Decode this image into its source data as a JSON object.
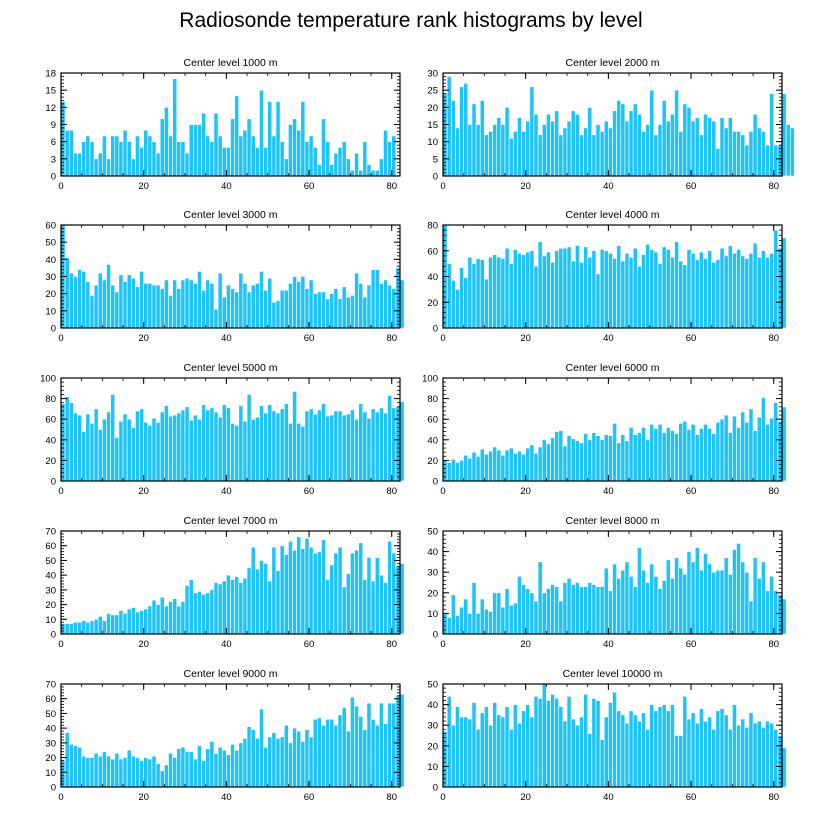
{
  "title": "Radiosonde temperature rank histograms by level",
  "style": {
    "bar_color": "#1ec3f8",
    "bar_edge": "#ffffff",
    "axis_color": "#000000"
  },
  "chart_data": [
    {
      "type": "bar",
      "title": "Center level 1000 m",
      "xlim": [
        0,
        82
      ],
      "ylim": [
        0,
        18
      ],
      "xticks": [
        0,
        20,
        40,
        60,
        80
      ],
      "yticks": [
        0,
        3,
        6,
        9,
        12,
        15,
        18
      ],
      "values": [
        13,
        8,
        8,
        4,
        4,
        6,
        7,
        6,
        3,
        4,
        7,
        3,
        7,
        7,
        6,
        8,
        6,
        3,
        7,
        5,
        8,
        7,
        6,
        4,
        10,
        12,
        7,
        17,
        6,
        6,
        4,
        9,
        9,
        9,
        11,
        7,
        6,
        11,
        7,
        5,
        5,
        10,
        14,
        7,
        8,
        10,
        7,
        5,
        15,
        5,
        13,
        7,
        13,
        6,
        3,
        9,
        10,
        8,
        13,
        6,
        7,
        5,
        2,
        10,
        6,
        2,
        4,
        5,
        6,
        3,
        1,
        4,
        1,
        6,
        2,
        1,
        1,
        3,
        8,
        6,
        7
      ]
    },
    {
      "type": "bar",
      "title": "Center level 2000 m",
      "xlim": [
        0,
        82
      ],
      "ylim": [
        0,
        30
      ],
      "xticks": [
        0,
        20,
        40,
        60,
        80
      ],
      "yticks": [
        0,
        5,
        10,
        15,
        20,
        25,
        30
      ],
      "values": [
        24,
        29,
        22,
        14,
        26,
        27,
        15,
        21,
        15,
        22,
        12,
        13,
        15,
        17,
        15,
        20,
        11,
        13,
        17,
        13,
        16,
        26,
        18,
        12,
        15,
        18,
        16,
        19,
        12,
        14,
        16,
        19,
        18,
        12,
        14,
        20,
        12,
        15,
        13,
        16,
        14,
        19,
        22,
        21,
        16,
        19,
        21,
        18,
        13,
        15,
        25,
        12,
        15,
        22,
        16,
        18,
        25,
        13,
        21,
        20,
        16,
        17,
        12,
        18,
        17,
        16,
        8,
        17,
        14,
        17,
        13,
        13,
        12,
        9,
        13,
        18,
        14,
        13,
        9,
        24,
        9,
        9,
        24,
        15,
        14
      ]
    },
    {
      "type": "bar",
      "title": "Center level 3000 m",
      "xlim": [
        0,
        82
      ],
      "ylim": [
        0,
        60
      ],
      "xticks": [
        0,
        20,
        40,
        60,
        80
      ],
      "yticks": [
        0,
        10,
        20,
        30,
        40,
        50,
        60
      ],
      "values": [
        60,
        41,
        32,
        30,
        34,
        33,
        27,
        19,
        25,
        32,
        28,
        37,
        25,
        21,
        31,
        27,
        31,
        29,
        24,
        33,
        26,
        26,
        25,
        25,
        23,
        28,
        19,
        28,
        23,
        28,
        29,
        28,
        26,
        33,
        22,
        28,
        26,
        11,
        32,
        18,
        25,
        23,
        21,
        32,
        26,
        21,
        25,
        26,
        33,
        22,
        29,
        15,
        16,
        22,
        22,
        26,
        30,
        27,
        30,
        23,
        28,
        20,
        21,
        21,
        17,
        20,
        23,
        17,
        24,
        18,
        19,
        32,
        26,
        18,
        25,
        34,
        34,
        26,
        28,
        25,
        23,
        35,
        28
      ]
    },
    {
      "type": "bar",
      "title": "Center level 4000 m",
      "xlim": [
        0,
        82
      ],
      "ylim": [
        0,
        80
      ],
      "xticks": [
        0,
        20,
        40,
        60,
        80
      ],
      "yticks": [
        0,
        20,
        40,
        60,
        80
      ],
      "values": [
        80,
        50,
        37,
        30,
        47,
        39,
        55,
        50,
        54,
        53,
        38,
        55,
        57,
        55,
        54,
        62,
        50,
        61,
        58,
        57,
        59,
        60,
        48,
        67,
        56,
        59,
        51,
        60,
        62,
        62,
        63,
        52,
        64,
        51,
        63,
        55,
        60,
        42,
        61,
        60,
        58,
        54,
        64,
        52,
        58,
        55,
        62,
        48,
        57,
        65,
        61,
        59,
        50,
        63,
        61,
        55,
        67,
        52,
        49,
        61,
        58,
        53,
        59,
        54,
        60,
        51,
        53,
        62,
        56,
        64,
        58,
        61,
        56,
        54,
        58,
        66,
        55,
        60,
        55,
        58,
        76,
        62,
        70
      ]
    },
    {
      "type": "bar",
      "title": "Center level 5000 m",
      "xlim": [
        0,
        82
      ],
      "ylim": [
        0,
        100
      ],
      "xticks": [
        0,
        20,
        40,
        60,
        80
      ],
      "yticks": [
        0,
        20,
        40,
        60,
        80,
        100
      ],
      "values": [
        75,
        82,
        76,
        66,
        64,
        48,
        65,
        56,
        70,
        50,
        60,
        67,
        84,
        42,
        58,
        65,
        60,
        52,
        68,
        70,
        57,
        54,
        61,
        57,
        67,
        73,
        63,
        64,
        66,
        69,
        72,
        59,
        64,
        60,
        74,
        69,
        71,
        67,
        62,
        74,
        71,
        56,
        54,
        73,
        58,
        84,
        60,
        62,
        73,
        66,
        74,
        68,
        66,
        70,
        75,
        56,
        87,
        56,
        53,
        68,
        70,
        65,
        69,
        75,
        63,
        64,
        68,
        68,
        64,
        65,
        69,
        60,
        75,
        67,
        61,
        70,
        67,
        71,
        66,
        83,
        71,
        72,
        77
      ]
    },
    {
      "type": "bar",
      "title": "Center level 6000 m",
      "xlim": [
        0,
        82
      ],
      "ylim": [
        0,
        100
      ],
      "xticks": [
        0,
        20,
        40,
        60,
        80
      ],
      "yticks": [
        0,
        20,
        40,
        60,
        80,
        100
      ],
      "values": [
        20,
        18,
        21,
        18,
        20,
        25,
        22,
        28,
        24,
        31,
        26,
        29,
        33,
        30,
        25,
        30,
        32,
        27,
        29,
        26,
        32,
        35,
        27,
        33,
        40,
        36,
        42,
        48,
        49,
        34,
        44,
        41,
        39,
        37,
        46,
        40,
        47,
        44,
        40,
        45,
        44,
        56,
        37,
        45,
        39,
        52,
        45,
        47,
        52,
        40,
        55,
        51,
        55,
        47,
        52,
        49,
        46,
        56,
        58,
        50,
        55,
        45,
        51,
        55,
        51,
        46,
        57,
        60,
        64,
        47,
        63,
        52,
        67,
        57,
        70,
        49,
        62,
        81,
        55,
        61,
        76,
        58,
        72
      ]
    },
    {
      "type": "bar",
      "title": "Center level 7000 m",
      "xlim": [
        0,
        82
      ],
      "ylim": [
        0,
        70
      ],
      "xticks": [
        0,
        20,
        40,
        60,
        80
      ],
      "yticks": [
        0,
        10,
        20,
        30,
        40,
        50,
        60,
        70
      ],
      "values": [
        7,
        7,
        7,
        8,
        8,
        9,
        8,
        9,
        10,
        12,
        9,
        14,
        13,
        13,
        16,
        14,
        17,
        18,
        15,
        16,
        17,
        19,
        23,
        20,
        25,
        19,
        22,
        24,
        19,
        22,
        33,
        37,
        28,
        29,
        27,
        28,
        30,
        35,
        34,
        36,
        40,
        37,
        39,
        35,
        38,
        45,
        59,
        44,
        50,
        48,
        36,
        59,
        43,
        60,
        54,
        63,
        57,
        66,
        58,
        65,
        59,
        55,
        56,
        64,
        37,
        47,
        55,
        59,
        32,
        41,
        55,
        57,
        62,
        37,
        52,
        36,
        52,
        40,
        35,
        63,
        55,
        46,
        48
      ]
    },
    {
      "type": "bar",
      "title": "Center level 8000 m",
      "xlim": [
        0,
        82
      ],
      "ylim": [
        0,
        50
      ],
      "xticks": [
        0,
        20,
        40,
        60,
        80
      ],
      "yticks": [
        0,
        10,
        20,
        30,
        40,
        50
      ],
      "values": [
        10,
        8,
        19,
        9,
        13,
        17,
        10,
        25,
        10,
        17,
        12,
        11,
        20,
        20,
        13,
        22,
        14,
        15,
        28,
        24,
        22,
        20,
        16,
        35,
        20,
        22,
        24,
        23,
        16,
        25,
        27,
        24,
        25,
        23,
        23,
        25,
        24,
        23,
        23,
        32,
        21,
        34,
        27,
        31,
        35,
        28,
        23,
        42,
        31,
        25,
        34,
        28,
        22,
        26,
        36,
        27,
        37,
        32,
        29,
        40,
        35,
        42,
        31,
        39,
        34,
        30,
        31,
        31,
        37,
        29,
        41,
        44,
        35,
        30,
        16,
        37,
        27,
        35,
        21,
        28,
        21,
        19,
        17
      ]
    },
    {
      "type": "bar",
      "title": "Center level 9000 m",
      "xlim": [
        0,
        82
      ],
      "ylim": [
        0,
        70
      ],
      "xticks": [
        0,
        20,
        40,
        60,
        80
      ],
      "yticks": [
        0,
        10,
        20,
        30,
        40,
        50,
        60,
        70
      ],
      "values": [
        18,
        37,
        29,
        28,
        27,
        21,
        20,
        20,
        23,
        21,
        24,
        21,
        19,
        23,
        19,
        20,
        25,
        21,
        20,
        18,
        20,
        19,
        21,
        16,
        11,
        15,
        23,
        20,
        26,
        27,
        24,
        24,
        19,
        28,
        18,
        26,
        31,
        23,
        27,
        25,
        22,
        29,
        25,
        30,
        33,
        41,
        39,
        33,
        53,
        27,
        34,
        37,
        33,
        34,
        42,
        30,
        40,
        38,
        31,
        39,
        34,
        46,
        47,
        42,
        46,
        46,
        42,
        49,
        54,
        38,
        61,
        55,
        48,
        39,
        57,
        46,
        42,
        57,
        43,
        57,
        57,
        62,
        63
      ]
    },
    {
      "type": "bar",
      "title": "Center level 10000 m",
      "xlim": [
        0,
        82
      ],
      "ylim": [
        0,
        50
      ],
      "xticks": [
        0,
        20,
        40,
        60,
        80
      ],
      "yticks": [
        0,
        10,
        20,
        30,
        40,
        50
      ],
      "values": [
        27,
        44,
        30,
        39,
        34,
        34,
        33,
        41,
        28,
        36,
        39,
        30,
        41,
        35,
        34,
        39,
        28,
        40,
        31,
        37,
        40,
        34,
        44,
        43,
        50,
        42,
        45,
        43,
        39,
        32,
        44,
        33,
        30,
        34,
        45,
        26,
        43,
        42,
        23,
        34,
        41,
        46,
        37,
        35,
        31,
        37,
        35,
        32,
        36,
        28,
        40,
        37,
        39,
        40,
        37,
        40,
        25,
        25,
        44,
        33,
        36,
        31,
        38,
        32,
        34,
        28,
        37,
        38,
        35,
        28,
        40,
        30,
        33,
        29,
        36,
        31,
        32,
        29,
        32,
        31,
        28,
        25,
        19
      ]
    }
  ]
}
